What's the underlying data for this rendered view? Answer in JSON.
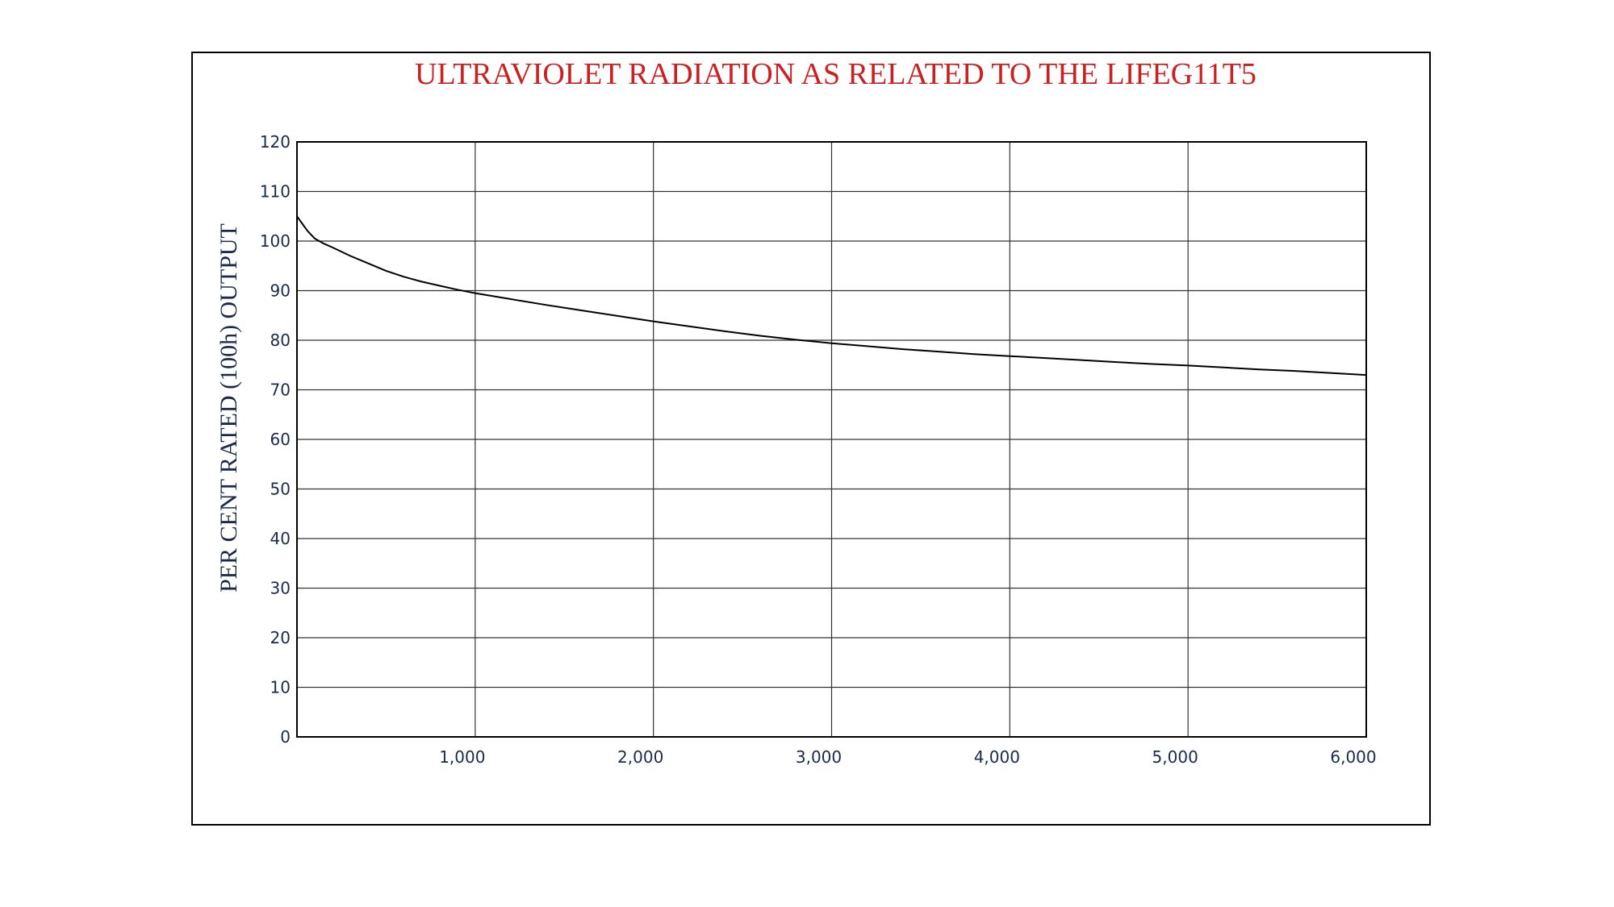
{
  "chart_data": {
    "type": "line",
    "title": "ULTRAVIOLET RADIATION AS RELATED TO THE LIFEG11T5",
    "xlabel": "",
    "ylabel": "PER CENT RATED (100h) OUTPUT",
    "xlim": [
      0,
      6000
    ],
    "ylim": [
      0,
      120
    ],
    "x_ticks": [
      1000,
      2000,
      3000,
      4000,
      5000,
      6000
    ],
    "x_tick_labels": [
      "1,000",
      "2,000",
      "3,000",
      "4,000",
      "5,000",
      "6,000"
    ],
    "y_ticks": [
      0,
      10,
      20,
      30,
      40,
      50,
      60,
      70,
      80,
      90,
      100,
      110,
      120
    ],
    "y_tick_labels": [
      "0",
      "10",
      "20",
      "30",
      "40",
      "50",
      "60",
      "70",
      "80",
      "90",
      "100",
      "110",
      "120"
    ],
    "grid": true,
    "legend": "none",
    "series": [
      {
        "x": [
          0,
          30,
          60,
          100,
          150,
          200,
          300,
          400,
          500,
          600,
          700,
          800,
          900,
          1000,
          1200,
          1400,
          1600,
          1800,
          2000,
          2200,
          2400,
          2600,
          2800,
          3000,
          3200,
          3400,
          3600,
          3800,
          4000,
          4200,
          4400,
          4600,
          4800,
          5000,
          5200,
          5400,
          5600,
          5800,
          6000
        ],
        "y": [
          105,
          103.5,
          102,
          100.5,
          99.5,
          98.7,
          97.0,
          95.5,
          94.0,
          92.8,
          91.8,
          91.0,
          90.2,
          89.5,
          88.3,
          87.1,
          86.0,
          84.9,
          83.8,
          82.8,
          81.8,
          80.9,
          80.1,
          79.4,
          78.8,
          78.2,
          77.7,
          77.2,
          76.8,
          76.4,
          76.0,
          75.6,
          75.2,
          74.9,
          74.5,
          74.1,
          73.8,
          73.4,
          73.0
        ],
        "color": "#000000"
      }
    ],
    "colors": {
      "title": "#cc1f1f",
      "axis_text": "#1a2a4a",
      "grid": "#333333",
      "line": "#000000"
    }
  }
}
